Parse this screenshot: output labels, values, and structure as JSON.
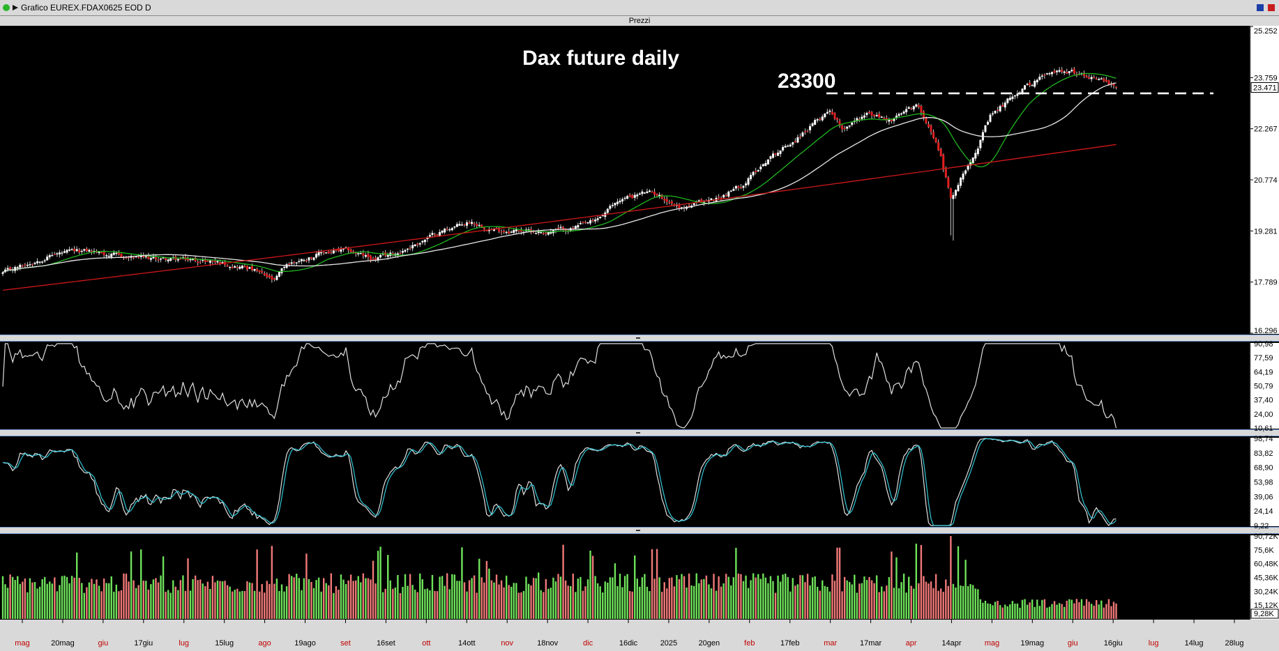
{
  "window": {
    "title": "Grafico EUREX.FDAX0625 EOD D",
    "panel_label": "Prezzi"
  },
  "chart_data": [
    {
      "type": "candlestick",
      "title": "Dax future daily",
      "annotation": "23300",
      "ylim": [
        16296,
        25252
      ],
      "y_ticks": [
        "25.252",
        "23.759",
        "22.267",
        "20.774",
        "19.281",
        "17.789",
        "16.296"
      ],
      "last_price_label": "23.471",
      "reference_level": 23300,
      "close_profile": [
        [
          0,
          18050
        ],
        [
          20,
          18600
        ],
        [
          35,
          18700
        ],
        [
          50,
          18500
        ],
        [
          70,
          18450
        ],
        [
          85,
          18400
        ],
        [
          100,
          18200
        ],
        [
          110,
          17800
        ],
        [
          115,
          18300
        ],
        [
          130,
          18650
        ],
        [
          140,
          18700
        ],
        [
          150,
          18450
        ],
        [
          160,
          18650
        ],
        [
          170,
          19000
        ],
        [
          180,
          19350
        ],
        [
          190,
          19550
        ],
        [
          200,
          19300
        ],
        [
          210,
          19300
        ],
        [
          220,
          19250
        ],
        [
          230,
          19350
        ],
        [
          240,
          19550
        ],
        [
          250,
          20200
        ],
        [
          260,
          20400
        ],
        [
          265,
          20350
        ],
        [
          275,
          19950
        ],
        [
          280,
          20050
        ],
        [
          290,
          20250
        ],
        [
          300,
          20650
        ],
        [
          310,
          21400
        ],
        [
          320,
          21900
        ],
        [
          330,
          22500
        ],
        [
          335,
          22850
        ],
        [
          340,
          22300
        ],
        [
          350,
          22700
        ],
        [
          360,
          22500
        ],
        [
          370,
          22950
        ],
        [
          375,
          22400
        ],
        [
          380,
          21500
        ],
        [
          384,
          20200
        ],
        [
          390,
          21100
        ],
        [
          395,
          21800
        ],
        [
          400,
          22600
        ],
        [
          410,
          23300
        ],
        [
          420,
          23750
        ],
        [
          430,
          24000
        ],
        [
          437,
          23850
        ],
        [
          445,
          23750
        ],
        [
          450,
          23471
        ]
      ],
      "moving_averages": [
        {
          "name": "",
          "color": "#1fb81f"
        },
        {
          "name": "",
          "color": "#e8e8e8"
        },
        {
          "name": "",
          "color": "#d01818"
        }
      ]
    },
    {
      "type": "line",
      "ylim": [
        10.61,
        90.98
      ],
      "y_ticks": [
        "90,98",
        "77,59",
        "64,19",
        "50,79",
        "37,40",
        "24,00",
        "10,61"
      ],
      "color": "#e0e0e0"
    },
    {
      "type": "line",
      "ylim": [
        9.22,
        98.74
      ],
      "y_ticks": [
        "98,74",
        "83,82",
        "68,90",
        "53,98",
        "39,06",
        "24,14",
        "9,22"
      ],
      "colors": [
        "#e0e0e0",
        "#32c8d8"
      ]
    },
    {
      "type": "bar",
      "ylim": [
        0,
        90.72
      ],
      "y_ticks": [
        "90,72K",
        "75,6K",
        "60,48K",
        "45,36K",
        "30,24K",
        "15,12K"
      ],
      "last_value_label": "9,28K",
      "up_color": "#6ee25a",
      "down_color": "#f07878"
    }
  ],
  "x_axis": {
    "labels": [
      {
        "text": "mag",
        "month": true
      },
      {
        "text": "20mag",
        "month": false
      },
      {
        "text": "giu",
        "month": true
      },
      {
        "text": "17giu",
        "month": false
      },
      {
        "text": "lug",
        "month": true
      },
      {
        "text": "15lug",
        "month": false
      },
      {
        "text": "ago",
        "month": true
      },
      {
        "text": "19ago",
        "month": false
      },
      {
        "text": "set",
        "month": true
      },
      {
        "text": "16set",
        "month": false
      },
      {
        "text": "ott",
        "month": true
      },
      {
        "text": "14ott",
        "month": false
      },
      {
        "text": "nov",
        "month": true
      },
      {
        "text": "18nov",
        "month": false
      },
      {
        "text": "dic",
        "month": true
      },
      {
        "text": "16dic",
        "month": false
      },
      {
        "text": "2025",
        "month": false
      },
      {
        "text": "20gen",
        "month": false
      },
      {
        "text": "feb",
        "month": true
      },
      {
        "text": "17feb",
        "month": false
      },
      {
        "text": "mar",
        "month": true
      },
      {
        "text": "17mar",
        "month": false
      },
      {
        "text": "apr",
        "month": true
      },
      {
        "text": "14apr",
        "month": false
      },
      {
        "text": "mag",
        "month": true
      },
      {
        "text": "19mag",
        "month": false
      },
      {
        "text": "giu",
        "month": true
      },
      {
        "text": "16giu",
        "month": false
      },
      {
        "text": "lug",
        "month": true
      },
      {
        "text": "14lug",
        "month": false
      },
      {
        "text": "28lug",
        "month": false
      }
    ]
  }
}
